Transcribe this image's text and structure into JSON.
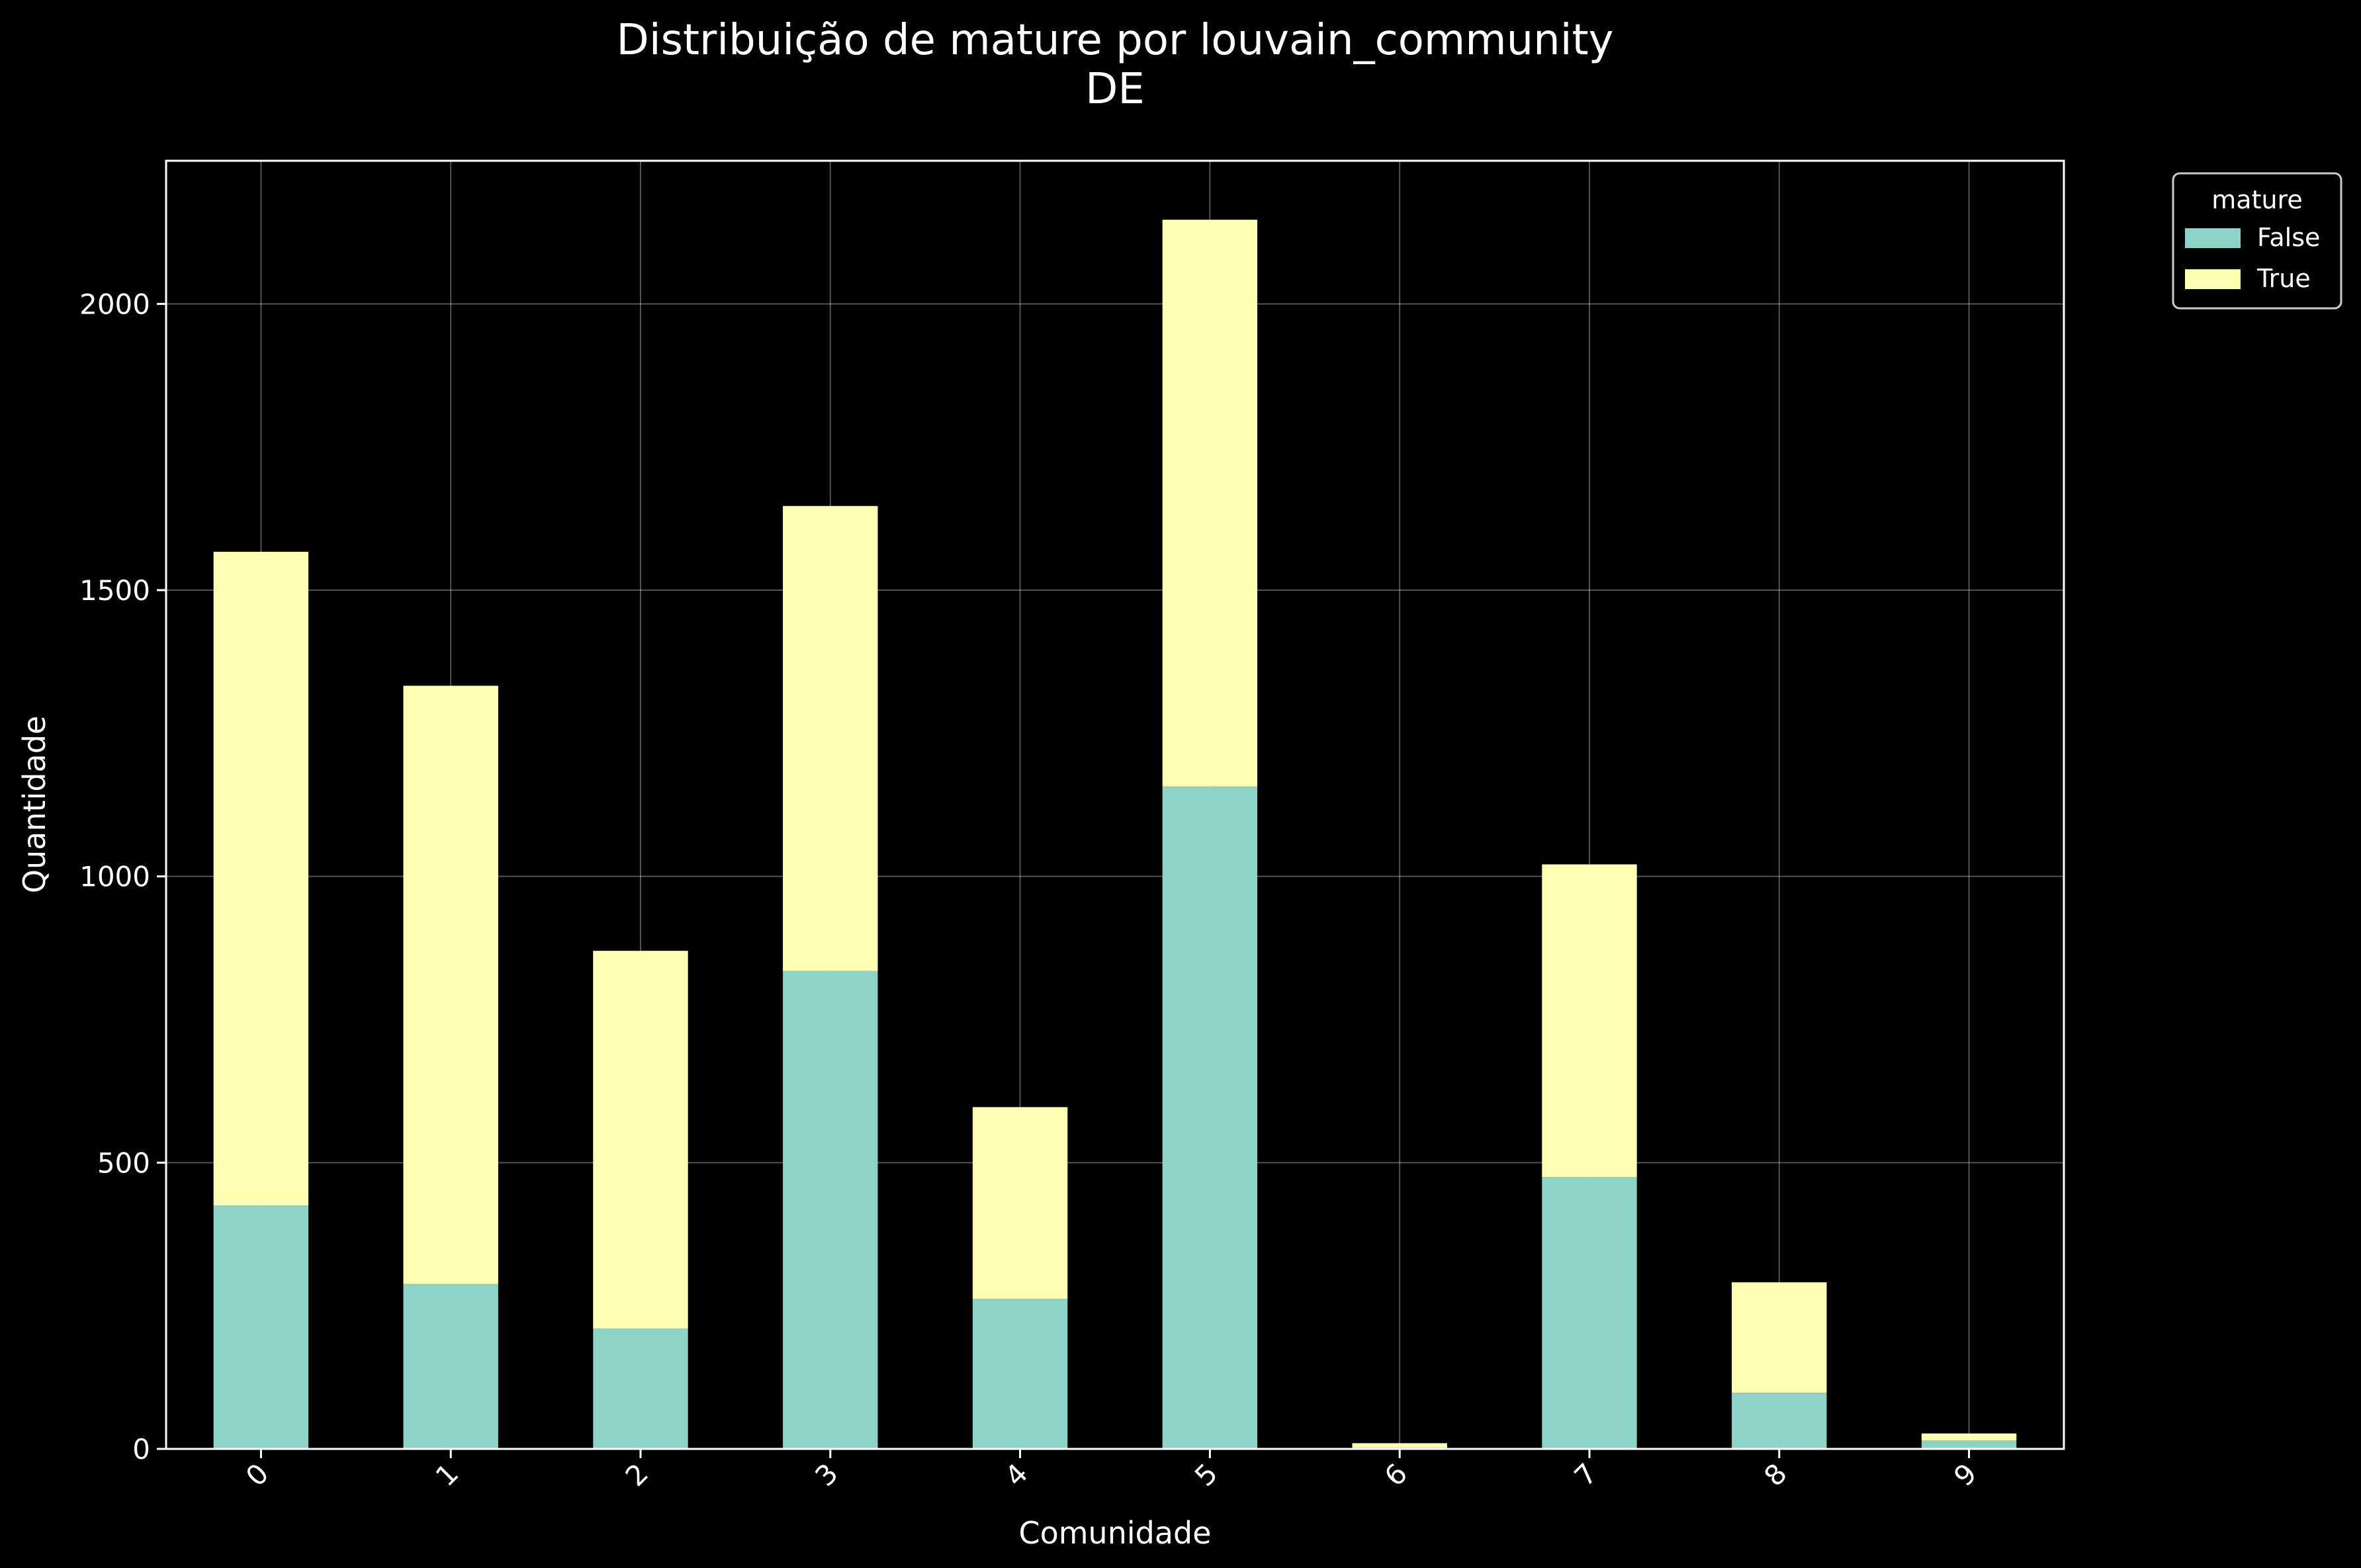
{
  "chart_data": {
    "type": "bar",
    "stacked": true,
    "title": "Distribuição de mature por louvain_community",
    "subtitle": "DE",
    "xlabel": "Comunidade",
    "ylabel": "Quantidade",
    "categories": [
      "0",
      "1",
      "2",
      "3",
      "4",
      "5",
      "6",
      "7",
      "8",
      "9"
    ],
    "ylim": [
      0,
      2250
    ],
    "yticks": [
      0,
      500,
      1000,
      1500,
      2000
    ],
    "grid": true,
    "legend": {
      "title": "mature",
      "placement": "upper-right-outside"
    },
    "series": [
      {
        "name": "False",
        "color": "#8dd3c7",
        "values": [
          425,
          288,
          210,
          835,
          262,
          1157,
          2,
          475,
          98,
          15
        ]
      },
      {
        "name": "True",
        "color": "#ffffb3",
        "values": [
          1142,
          1045,
          660,
          812,
          335,
          990,
          8,
          546,
          193,
          12
        ]
      }
    ]
  }
}
